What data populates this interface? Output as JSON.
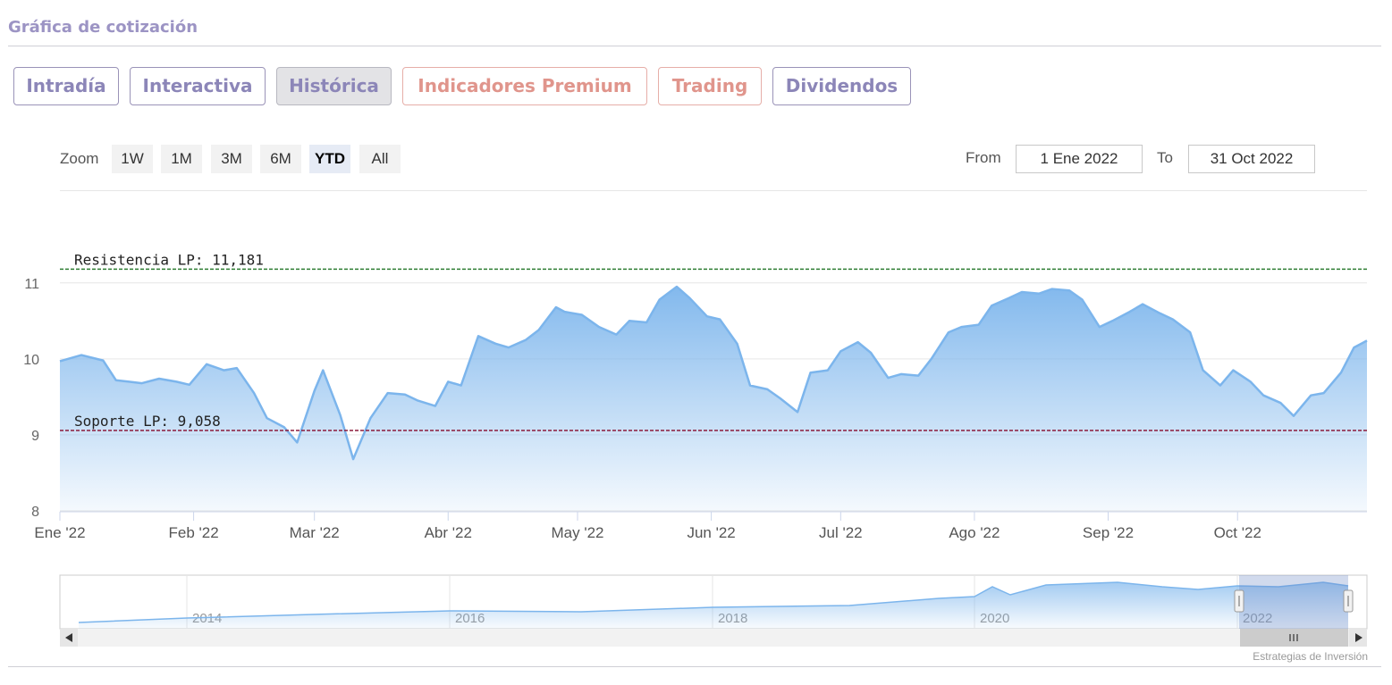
{
  "header": {
    "title": "Gráfica de cotización"
  },
  "tabs": [
    {
      "label": "Intradía",
      "active": false,
      "premium": false
    },
    {
      "label": "Interactiva",
      "active": false,
      "premium": false
    },
    {
      "label": "Histórica",
      "active": true,
      "premium": false
    },
    {
      "label": "Indicadores Premium",
      "active": false,
      "premium": true
    },
    {
      "label": "Trading",
      "active": false,
      "premium": true
    },
    {
      "label": "Dividendos",
      "active": false,
      "premium": false
    }
  ],
  "zoom": {
    "label": "Zoom",
    "buttons": [
      "1W",
      "1M",
      "3M",
      "6M",
      "YTD",
      "All"
    ],
    "selected": "YTD"
  },
  "range": {
    "from_label": "From",
    "from_value": "1 Ene 2022",
    "to_label": "To",
    "to_value": "31 Oct 2022"
  },
  "credits": "Estrategias de Inversión",
  "colors": {
    "accent": "#8c86b8",
    "premium": "#e0958c",
    "series": "#7cb5ec",
    "resistance": "#2e7d32",
    "support": "#8b1a3a"
  },
  "chart_data": {
    "type": "area",
    "title": "",
    "xlabel": "",
    "ylabel": "",
    "ylim": [
      8,
      11.35
    ],
    "yticks": [
      8,
      9,
      10,
      11
    ],
    "xlim": [
      "2022-01-01",
      "2022-10-31"
    ],
    "xticks": [
      {
        "date": "2022-01-01",
        "label": "Ene '22"
      },
      {
        "date": "2022-02-01",
        "label": "Feb '22"
      },
      {
        "date": "2022-03-01",
        "label": "Mar '22"
      },
      {
        "date": "2022-04-01",
        "label": "Abr '22"
      },
      {
        "date": "2022-05-01",
        "label": "May '22"
      },
      {
        "date": "2022-06-01",
        "label": "Jun '22"
      },
      {
        "date": "2022-07-01",
        "label": "Jul '22"
      },
      {
        "date": "2022-08-01",
        "label": "Ago '22"
      },
      {
        "date": "2022-09-01",
        "label": "Sep '22"
      },
      {
        "date": "2022-10-01",
        "label": "Oct '22"
      }
    ],
    "lines": [
      {
        "label": "Resistencia LP: 11,181",
        "value": 11.181,
        "color": "#2e7d32"
      },
      {
        "label": "Soporte LP: 9,058",
        "value": 9.058,
        "color": "#8b1a3a"
      }
    ],
    "series": [
      {
        "x": [
          "2022-01-01",
          "2022-01-06",
          "2022-01-11",
          "2022-01-14",
          "2022-01-17",
          "2022-01-20",
          "2022-01-24",
          "2022-01-28",
          "2022-01-31",
          "2022-02-04",
          "2022-02-08",
          "2022-02-11",
          "2022-02-15",
          "2022-02-18",
          "2022-02-22",
          "2022-02-25",
          "2022-03-01",
          "2022-03-03",
          "2022-03-07",
          "2022-03-10",
          "2022-03-14",
          "2022-03-18",
          "2022-03-22",
          "2022-03-25",
          "2022-03-29",
          "2022-04-01",
          "2022-04-04",
          "2022-04-08",
          "2022-04-12",
          "2022-04-15",
          "2022-04-19",
          "2022-04-22",
          "2022-04-26",
          "2022-04-28",
          "2022-05-02",
          "2022-05-06",
          "2022-05-10",
          "2022-05-13",
          "2022-05-17",
          "2022-05-20",
          "2022-05-24",
          "2022-05-27",
          "2022-05-31",
          "2022-06-03",
          "2022-06-07",
          "2022-06-10",
          "2022-06-14",
          "2022-06-17",
          "2022-06-21",
          "2022-06-24",
          "2022-06-28",
          "2022-07-01",
          "2022-07-05",
          "2022-07-08",
          "2022-07-12",
          "2022-07-15",
          "2022-07-19",
          "2022-07-22",
          "2022-07-26",
          "2022-07-29",
          "2022-08-02",
          "2022-08-05",
          "2022-08-09",
          "2022-08-12",
          "2022-08-16",
          "2022-08-19",
          "2022-08-23",
          "2022-08-26",
          "2022-08-30",
          "2022-09-02",
          "2022-09-06",
          "2022-09-09",
          "2022-09-13",
          "2022-09-16",
          "2022-09-20",
          "2022-09-23",
          "2022-09-27",
          "2022-09-30",
          "2022-10-04",
          "2022-10-07",
          "2022-10-11",
          "2022-10-14",
          "2022-10-18",
          "2022-10-21",
          "2022-10-25",
          "2022-10-28",
          "2022-10-31"
        ],
        "y": [
          9.97,
          10.05,
          9.98,
          9.72,
          9.7,
          9.68,
          9.74,
          9.7,
          9.66,
          9.93,
          9.85,
          9.88,
          9.55,
          9.22,
          9.1,
          8.9,
          9.58,
          9.85,
          9.26,
          8.68,
          9.22,
          9.55,
          9.53,
          9.45,
          9.38,
          9.7,
          9.65,
          10.3,
          10.2,
          10.15,
          10.25,
          10.38,
          10.68,
          10.62,
          10.58,
          10.42,
          10.32,
          10.5,
          10.48,
          10.78,
          10.95,
          10.8,
          10.56,
          10.52,
          10.2,
          9.65,
          9.6,
          9.48,
          9.3,
          9.82,
          9.85,
          10.1,
          10.22,
          10.08,
          9.75,
          9.8,
          9.78,
          10.0,
          10.35,
          10.42,
          10.45,
          10.7,
          10.8,
          10.88,
          10.86,
          10.92,
          10.9,
          10.78,
          10.42,
          10.5,
          10.62,
          10.72,
          10.6,
          10.52,
          10.35,
          9.85,
          9.65,
          9.85,
          9.7,
          9.52,
          9.42,
          9.25,
          9.52,
          9.55,
          9.82,
          10.15,
          10.24
        ]
      }
    ],
    "navigator": {
      "labels": [
        "2014",
        "2016",
        "2018",
        "2020",
        "2022"
      ]
    }
  }
}
